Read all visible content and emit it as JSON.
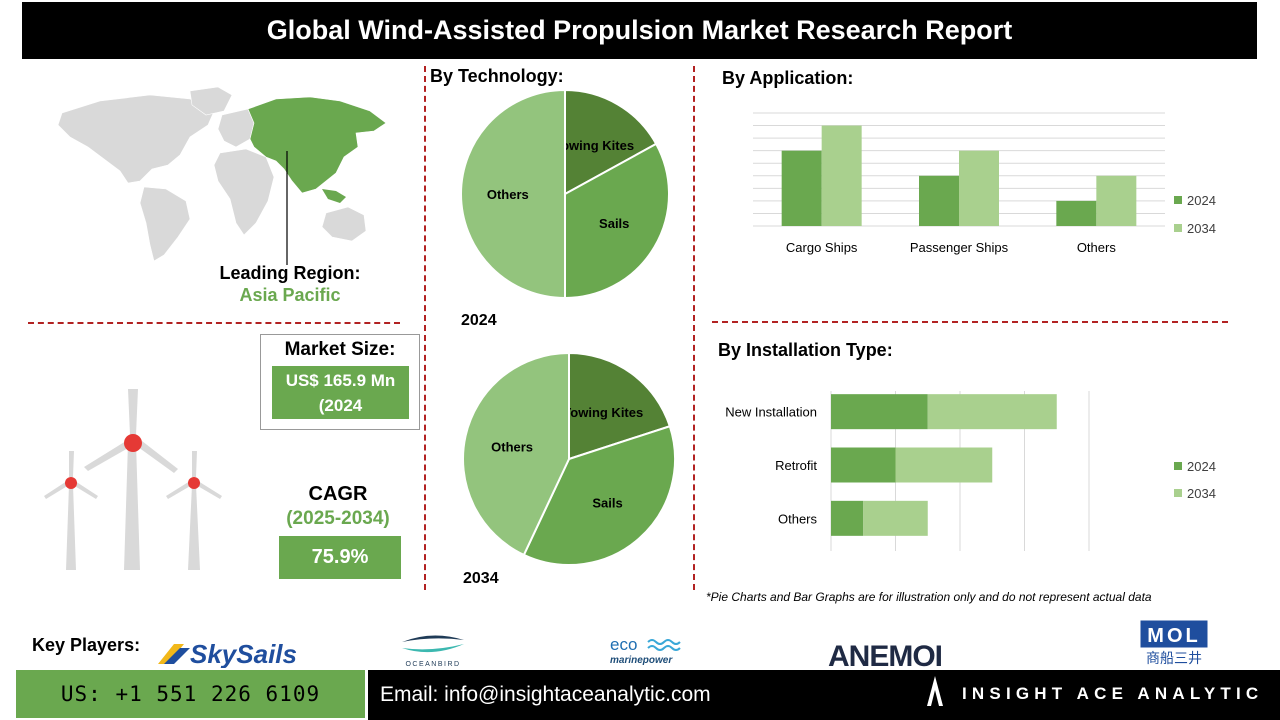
{
  "header": {
    "title": "Global Wind-Assisted Propulsion Market Research Report"
  },
  "region": {
    "label": "Leading Region:",
    "value": "Asia Pacific"
  },
  "market_size": {
    "label": "Market Size:",
    "value_line1": "US$ 165.9 Mn",
    "value_line2": "(2024"
  },
  "cagr": {
    "label": "CAGR",
    "period": "(2025-2034)",
    "value": "75.9%"
  },
  "sections": {
    "technology": "By  Technology:",
    "application": "By Application:",
    "installation": "By Installation Type:"
  },
  "disclaimer": "*Pie Charts and Bar Graphs are for illustration only and do not represent actual data",
  "key_players": {
    "label": "Key Players:",
    "logos": [
      "SkySails",
      "OCEANBIRD",
      "eco",
      "marinepower",
      "ANEMOI",
      "MOL",
      "商船三井"
    ]
  },
  "footer": {
    "phone": "US: +1 551 226 6109",
    "email": "Email: info@insightaceanalytic.com",
    "brand": "INSIGHT ACE ANALYTIC",
    "brand_logo": "A"
  },
  "colors": {
    "dark_green": "#548235",
    "mid_green": "#6aa84f",
    "light_green": "#93c47d",
    "pale_green": "#a9d08e",
    "accent_red": "#b22222",
    "turbine_red": "#e53935"
  },
  "chart_data": [
    {
      "type": "pie",
      "title": "2024",
      "labels": [
        "Towing Kites",
        "Sails",
        "Others"
      ],
      "values": [
        17,
        33,
        50
      ],
      "colors": [
        "#548235",
        "#6aa84f",
        "#93c47d"
      ]
    },
    {
      "type": "pie",
      "title": "2034",
      "labels": [
        "Towing Kites",
        "Sails",
        "Others"
      ],
      "values": [
        20,
        37,
        43
      ],
      "colors": [
        "#548235",
        "#6aa84f",
        "#93c47d"
      ]
    },
    {
      "type": "bar",
      "orientation": "vertical",
      "categories": [
        "Cargo Ships",
        "Passenger Ships",
        "Others"
      ],
      "series": [
        {
          "name": "2024",
          "values": [
            3,
            2,
            1
          ],
          "color": "#6aa84f"
        },
        {
          "name": "2034",
          "values": [
            4,
            3,
            2
          ],
          "color": "#a9d08e"
        }
      ],
      "ylim": [
        0,
        4.5
      ],
      "grid": true,
      "legend": "right"
    },
    {
      "type": "bar",
      "orientation": "horizontal-stacked",
      "categories": [
        "New Installation",
        "Retrofit",
        "Others"
      ],
      "series": [
        {
          "name": "2024",
          "values": [
            1.5,
            1.0,
            0.5
          ],
          "color": "#6aa84f"
        },
        {
          "name": "2034",
          "values": [
            2.0,
            1.5,
            1.0
          ],
          "color": "#a9d08e"
        }
      ],
      "xlim": [
        0,
        4
      ],
      "grid": true,
      "legend": "right"
    }
  ]
}
